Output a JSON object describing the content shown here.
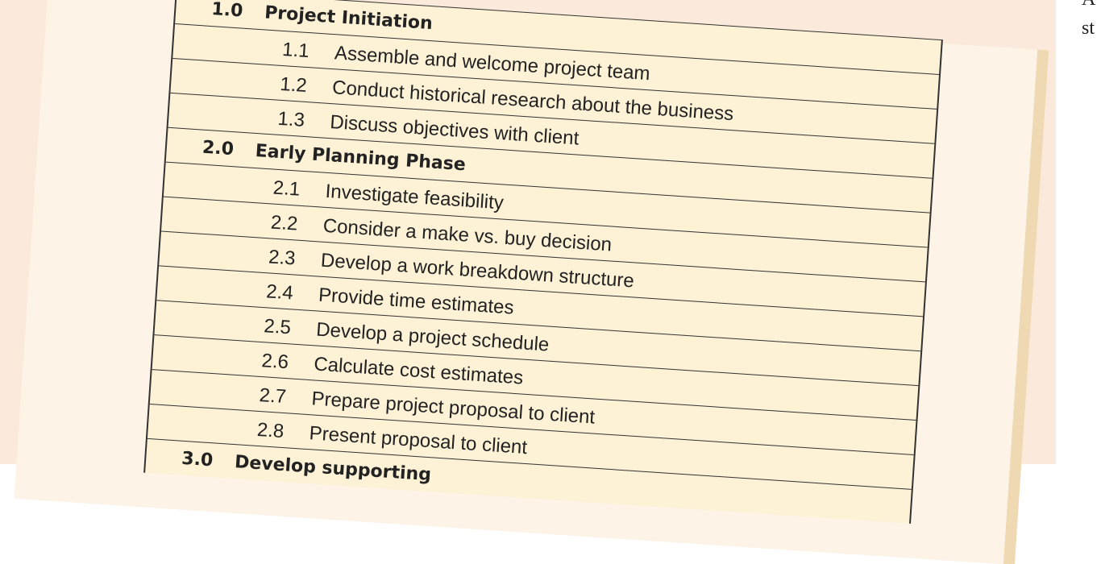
{
  "table": {
    "rows": [
      {
        "num": "1.0",
        "text": "Project Initiation",
        "level": 0
      },
      {
        "num": "1.1",
        "text": "Assemble and welcome project team",
        "level": 1
      },
      {
        "num": "1.2",
        "text": "Conduct historical research about the business",
        "level": 1
      },
      {
        "num": "1.3",
        "text": "Discuss objectives with client",
        "level": 1
      },
      {
        "num": "2.0",
        "text": "Early Planning Phase",
        "level": 0
      },
      {
        "num": "2.1",
        "text": "Investigate feasibility",
        "level": 1
      },
      {
        "num": "2.2",
        "text": "Consider a make vs. buy decision",
        "level": 1
      },
      {
        "num": "2.3",
        "text": "Develop a work breakdown structure",
        "level": 1
      },
      {
        "num": "2.4",
        "text": "Provide time estimates",
        "level": 1
      },
      {
        "num": "2.5",
        "text": "Develop a project schedule",
        "level": 1
      },
      {
        "num": "2.6",
        "text": "Calculate cost estimates",
        "level": 1
      },
      {
        "num": "2.7",
        "text": "Prepare project proposal to client",
        "level": 1
      },
      {
        "num": "2.8",
        "text": "Present proposal to client",
        "level": 1
      },
      {
        "num": "3.0",
        "text": "Develop supporting",
        "level": 0
      }
    ]
  },
  "side_text": [
    "A",
    "st"
  ]
}
